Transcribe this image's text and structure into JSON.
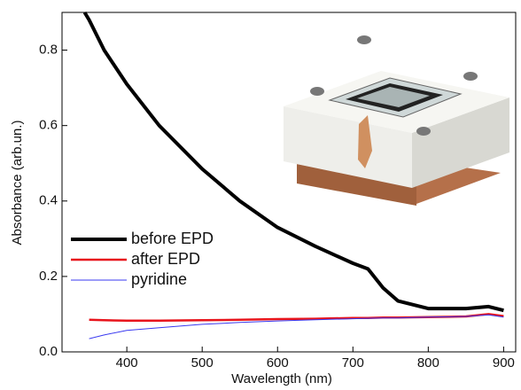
{
  "chart_data": {
    "type": "line",
    "xlabel": "Wavelength (nm)",
    "ylabel": "Absorbance (arb.un.)",
    "x": [
      344,
      350,
      370,
      400,
      443,
      500,
      550,
      600,
      650,
      700,
      720,
      740,
      760,
      800,
      850,
      880,
      900
    ],
    "series": [
      {
        "name": "before EPD",
        "color": "#000000",
        "values": [
          0.9,
          0.88,
          0.8,
          0.71,
          0.6,
          0.485,
          0.4,
          0.33,
          0.28,
          0.235,
          0.22,
          0.17,
          0.135,
          0.115,
          0.115,
          0.12,
          0.11
        ]
      },
      {
        "name": "after EPD",
        "color": "#e8141c",
        "values": [
          null,
          0.085,
          0.084,
          0.083,
          0.083,
          0.084,
          0.085,
          0.087,
          0.088,
          0.09,
          0.09,
          0.091,
          0.091,
          0.092,
          0.094,
          0.1,
          0.095
        ]
      },
      {
        "name": "pyridine",
        "color": "#3a3af0",
        "values": [
          null,
          0.035,
          0.045,
          0.057,
          0.064,
          0.073,
          0.078,
          0.082,
          0.085,
          0.088,
          0.089,
          0.09,
          0.09,
          0.092,
          0.094,
          0.098,
          0.092
        ]
      }
    ],
    "xlim": [
      314,
      916
    ],
    "ylim": [
      0,
      0.9
    ],
    "xticks": [
      400,
      500,
      600,
      700,
      800,
      900
    ],
    "yticks": [
      {
        "value": 0,
        "label": "0.0"
      },
      0.2,
      0.4,
      0.6,
      0.8
    ],
    "legend": "lower left"
  }
}
